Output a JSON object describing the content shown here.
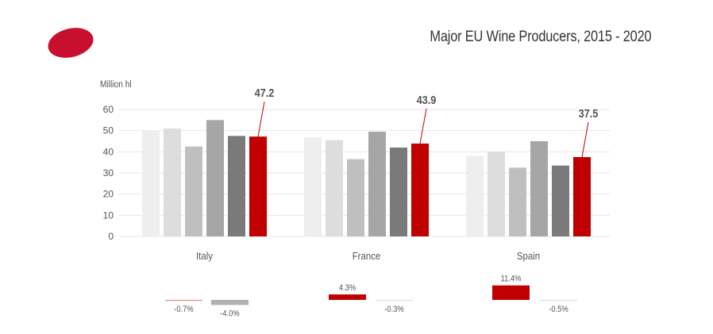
{
  "header": {
    "title": "Major EU Wine Producers, 2015 - 2020",
    "logo_color": "#c8102e"
  },
  "chart_data": {
    "type": "bar",
    "ylabel": "Million hl",
    "ylim": [
      0,
      60
    ],
    "yticks": [
      0,
      10,
      20,
      30,
      40,
      50,
      60
    ],
    "categories": [
      "Italy",
      "France",
      "Spain"
    ],
    "series": [
      {
        "values": [
          50,
          47,
          38
        ],
        "color": "#eeeeee"
      },
      {
        "values": [
          51,
          45.5,
          40
        ],
        "color": "#dddddd"
      },
      {
        "values": [
          42.5,
          36.5,
          32.5
        ],
        "color": "#bfbfbf"
      },
      {
        "values": [
          55,
          49.5,
          45
        ],
        "color": "#a6a6a6"
      },
      {
        "values": [
          47.5,
          42,
          33.5
        ],
        "color": "#7a7a7a"
      },
      {
        "values": [
          47.2,
          43.9,
          37.5
        ],
        "color": "#c00000"
      }
    ],
    "data_labels": [
      "47.2",
      "43.9",
      "37.5"
    ],
    "change_bars": [
      {
        "category": "Italy",
        "left": {
          "value": -0.7,
          "label": "-0.7%",
          "color": "#f08080"
        },
        "right": {
          "value": -4.0,
          "label": "-4.0%",
          "color": "#b0b0b0"
        }
      },
      {
        "category": "France",
        "left": {
          "value": 4.3,
          "label": "4.3%",
          "color": "#c00000"
        },
        "right": {
          "value": -0.3,
          "label": "-0.3%",
          "color": "#d8d8d8"
        }
      },
      {
        "category": "Spain",
        "left": {
          "value": 11.4,
          "label": "11.4%",
          "color": "#c00000"
        },
        "right": {
          "value": -0.5,
          "label": "-0.5%",
          "color": "#d8d8d8"
        }
      }
    ],
    "grid": true,
    "legend": "none"
  }
}
